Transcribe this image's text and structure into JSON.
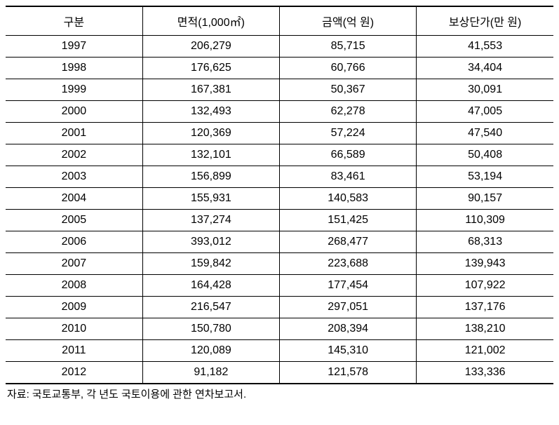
{
  "table": {
    "columns": [
      {
        "label": "구분"
      },
      {
        "label": "면적(1,000㎡)"
      },
      {
        "label": "금액(억 원)"
      },
      {
        "label": "보상단가(만 원)"
      }
    ],
    "rows": [
      {
        "year": "1997",
        "area": "206,279",
        "amount": "85,715",
        "unit": "41,553"
      },
      {
        "year": "1998",
        "area": "176,625",
        "amount": "60,766",
        "unit": "34,404"
      },
      {
        "year": "1999",
        "area": "167,381",
        "amount": "50,367",
        "unit": "30,091"
      },
      {
        "year": "2000",
        "area": "132,493",
        "amount": "62,278",
        "unit": "47,005"
      },
      {
        "year": "2001",
        "area": "120,369",
        "amount": "57,224",
        "unit": "47,540"
      },
      {
        "year": "2002",
        "area": "132,101",
        "amount": "66,589",
        "unit": "50,408"
      },
      {
        "year": "2003",
        "area": "156,899",
        "amount": "83,461",
        "unit": "53,194"
      },
      {
        "year": "2004",
        "area": "155,931",
        "amount": "140,583",
        "unit": "90,157"
      },
      {
        "year": "2005",
        "area": "137,274",
        "amount": "151,425",
        "unit": "110,309"
      },
      {
        "year": "2006",
        "area": "393,012",
        "amount": "268,477",
        "unit": "68,313"
      },
      {
        "year": "2007",
        "area": "159,842",
        "amount": "223,688",
        "unit": "139,943"
      },
      {
        "year": "2008",
        "area": "164,428",
        "amount": "177,454",
        "unit": "107,922"
      },
      {
        "year": "2009",
        "area": "216,547",
        "amount": "297,051",
        "unit": "137,176"
      },
      {
        "year": "2010",
        "area": "150,780",
        "amount": "208,394",
        "unit": "138,210"
      },
      {
        "year": "2011",
        "area": "120,089",
        "amount": "145,310",
        "unit": "121,002"
      },
      {
        "year": "2012",
        "area": "91,182",
        "amount": "121,578",
        "unit": "133,336"
      }
    ],
    "footnote": "자료: 국토교통부, 각 년도 국토이용에 관한 연차보고서.",
    "styling": {
      "border_color": "#000000",
      "header_top_border_width": 2,
      "header_bottom_border_width": 1,
      "row_border_width": 1,
      "last_row_border_width": 2,
      "background_color": "#ffffff",
      "text_color": "#000000",
      "header_fontsize": 16,
      "cell_fontsize": 16,
      "footnote_fontsize": 15,
      "column_widths_pct": [
        25,
        25,
        25,
        25
      ],
      "text_align": "center",
      "font_family": "Malgun Gothic"
    }
  }
}
